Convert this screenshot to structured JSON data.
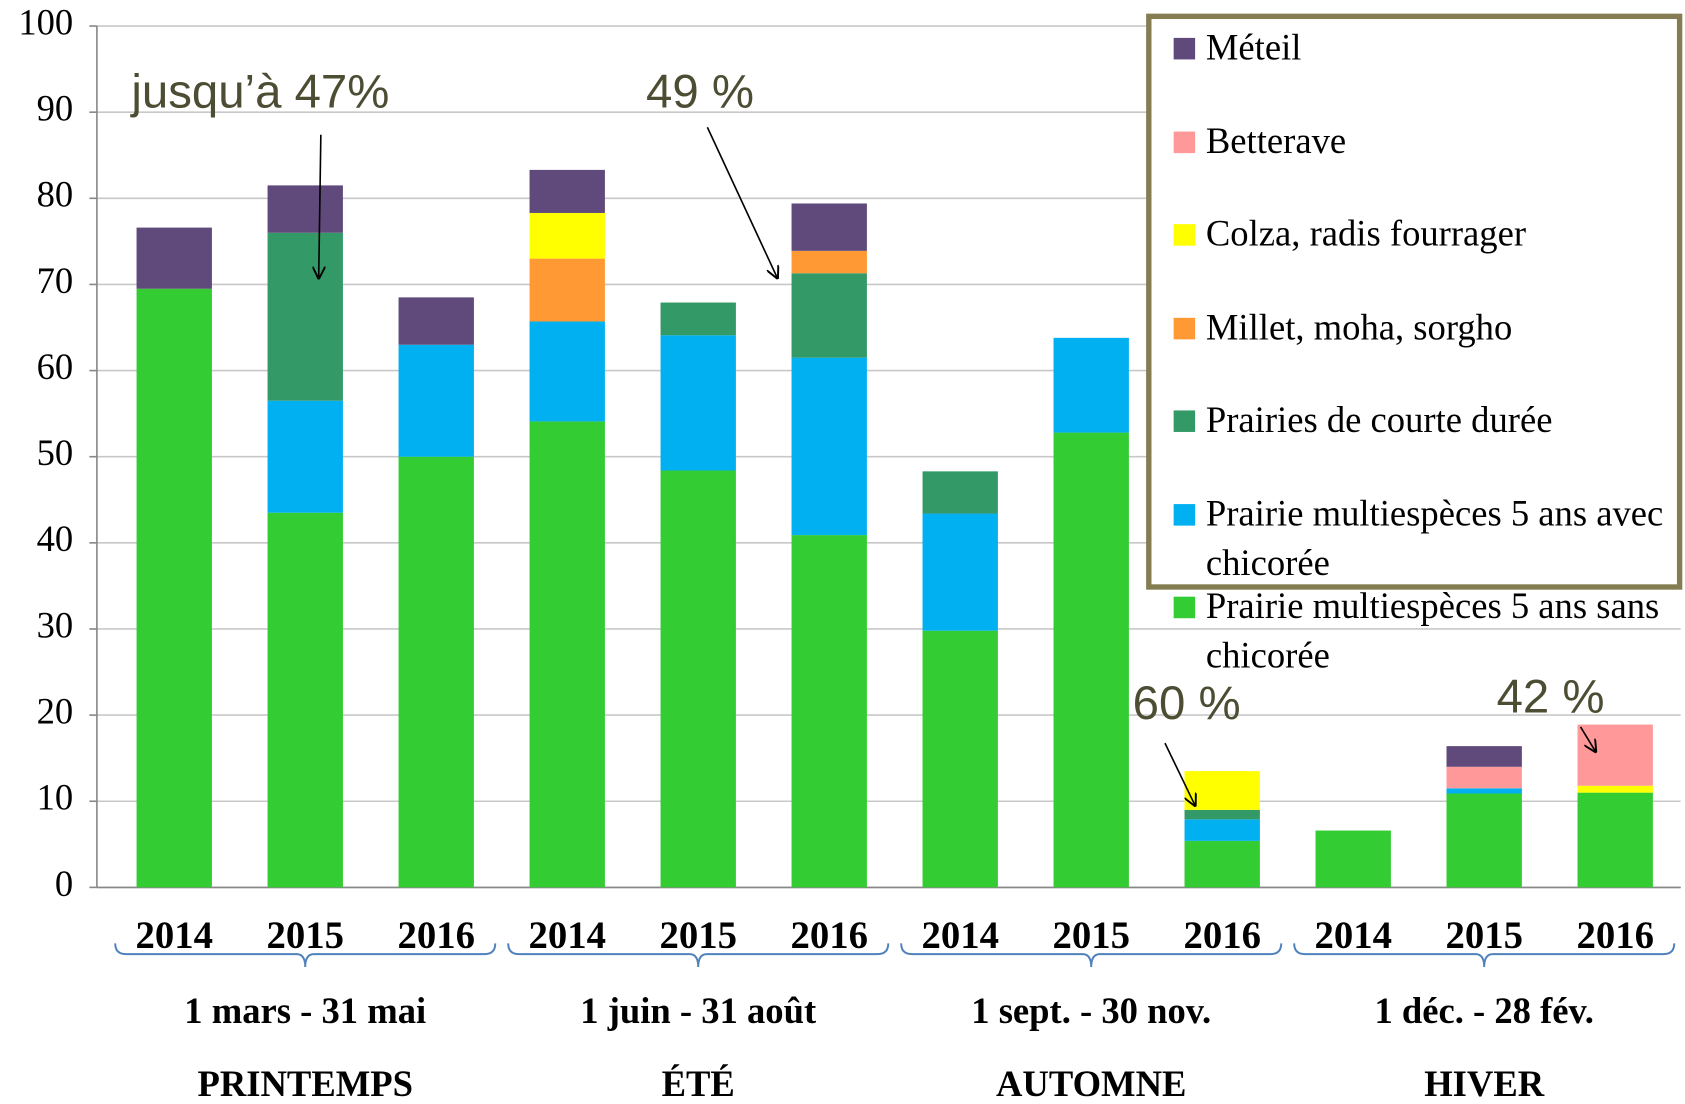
{
  "chart_data": {
    "type": "bar",
    "stacked": true,
    "categories": [
      "2014",
      "2015",
      "2016",
      "2014",
      "2015",
      "2016",
      "2014",
      "2015",
      "2016",
      "2014",
      "2015",
      "2016"
    ],
    "groups": [
      {
        "label": "1 mars - 31 mai",
        "season": "PRINTEMPS"
      },
      {
        "label": "1 juin - 31 août",
        "season": "ÉTÉ"
      },
      {
        "label": "1 sept. - 30 nov.",
        "season": "AUTOMNE"
      },
      {
        "label": "1 déc. - 28 fév.",
        "season": "HIVER"
      }
    ],
    "series": [
      {
        "name": "Prairie multiespèces 5 ans sans chicorée",
        "color": "#33cc33",
        "values": [
          69.5,
          43.5,
          50,
          54.1,
          48.4,
          40.9,
          29.8,
          52.8,
          5.4,
          6.6,
          10.9,
          11
        ]
      },
      {
        "name": "Prairie multiespèces 5 ans avec chicorée",
        "color": "#00b0f0",
        "values": [
          0,
          13,
          13,
          11.6,
          15.7,
          20.6,
          13.6,
          11,
          2.5,
          0,
          0.6,
          0
        ]
      },
      {
        "name": "Prairies de courte durée",
        "color": "#339966",
        "values": [
          0,
          19.5,
          0,
          0,
          3.8,
          9.8,
          4.9,
          0,
          1.1,
          0,
          0,
          0
        ]
      },
      {
        "name": "Millet, moha, sorgho",
        "color": "#ff9933",
        "values": [
          0,
          0,
          0,
          7.3,
          0,
          2.6,
          0,
          0,
          0,
          0,
          0,
          0
        ]
      },
      {
        "name": "Colza, radis fourrager",
        "color": "#ffff00",
        "values": [
          0,
          0,
          0,
          5.3,
          0,
          0,
          0,
          0,
          4.5,
          0,
          0,
          0.8
        ]
      },
      {
        "name": "Betterave",
        "color": "#ff9999",
        "values": [
          0,
          0,
          0,
          0,
          0,
          0,
          0,
          0,
          0,
          0,
          2.5,
          7.1
        ]
      },
      {
        "name": "Méteil",
        "color": "#604a7b",
        "values": [
          7.1,
          5.5,
          5.5,
          5,
          0,
          5.5,
          0,
          0,
          0,
          0,
          2.4,
          0
        ]
      }
    ],
    "annotations": [
      "jusqu’à 47%",
      "49 %",
      "60 %",
      "42 %"
    ],
    "ylim": [
      0,
      100
    ],
    "yticks": [
      0,
      10,
      20,
      30,
      40,
      50,
      60,
      70,
      80,
      90,
      100
    ],
    "grid": true,
    "legend": "upper right"
  }
}
